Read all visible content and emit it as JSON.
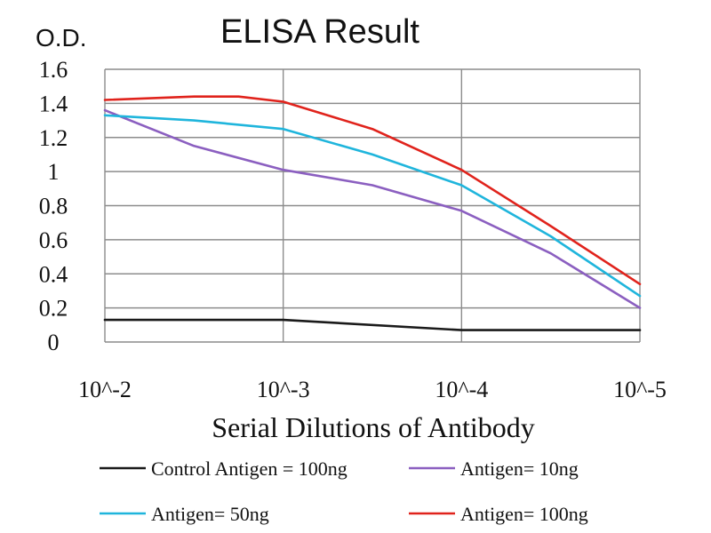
{
  "chart_data": {
    "type": "line",
    "title": "ELISA Result",
    "ylabel": "O.D.",
    "xlabel": "Serial Dilutions of Antibody",
    "categories": [
      "10^-2",
      "10^-3",
      "10^-4",
      "10^-5"
    ],
    "y_ticks": [
      "0",
      "0.2",
      "0.4",
      "0.6",
      "0.8",
      "1",
      "1.2",
      "1.4",
      "1.6"
    ],
    "ylim": [
      0,
      1.6
    ],
    "grid": true,
    "legend_position": "bottom",
    "series": [
      {
        "name": "Control Antigen = 100ng",
        "color": "#1a1a1a",
        "x": [
          0,
          1,
          2,
          3
        ],
        "values": [
          0.13,
          0.13,
          0.07,
          0.07
        ]
      },
      {
        "name": "Antigen= 10ng",
        "color": "#8b5fc0",
        "x": [
          0,
          0.5,
          1,
          1.5,
          2,
          2.5,
          3
        ],
        "values": [
          1.36,
          1.15,
          1.01,
          0.92,
          0.77,
          0.52,
          0.2
        ]
      },
      {
        "name": "Antigen= 50ng",
        "color": "#1fb5dc",
        "x": [
          0,
          0.5,
          1,
          1.5,
          2,
          2.5,
          3
        ],
        "values": [
          1.33,
          1.3,
          1.25,
          1.1,
          0.92,
          0.62,
          0.27
        ]
      },
      {
        "name": "Antigen= 100ng",
        "color": "#e0231c",
        "x": [
          0,
          0.5,
          0.75,
          1,
          1.5,
          2,
          2.5,
          3
        ],
        "values": [
          1.42,
          1.44,
          1.44,
          1.41,
          1.25,
          1.01,
          0.68,
          0.34
        ]
      }
    ]
  }
}
